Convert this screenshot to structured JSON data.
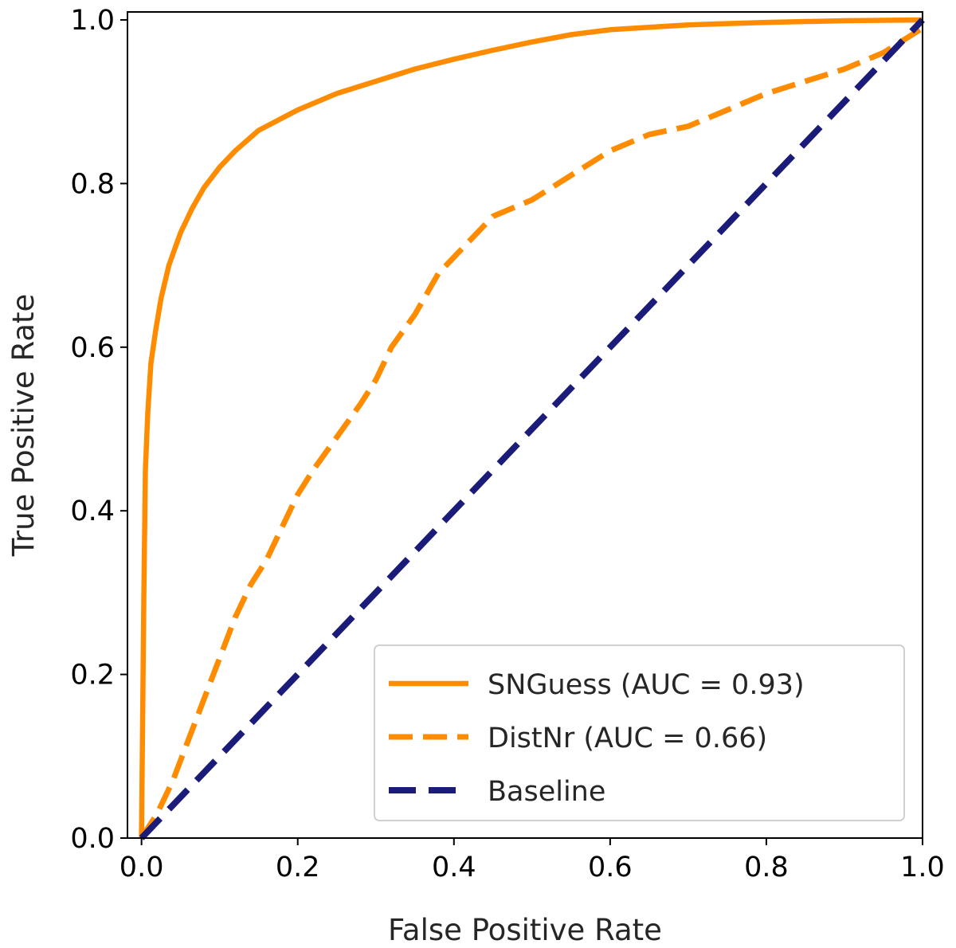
{
  "chart_data": {
    "type": "line",
    "title": "",
    "xlabel": "False Positive Rate",
    "ylabel": "True Positive Rate",
    "xlim": [
      0.0,
      1.0
    ],
    "ylim": [
      0.0,
      1.0
    ],
    "grid": false,
    "legend_position": "bottom-right",
    "x_ticks": [
      "0.0",
      "0.2",
      "0.4",
      "0.6",
      "0.8",
      "1.0"
    ],
    "y_ticks": [
      "0.0",
      "0.2",
      "0.4",
      "0.6",
      "0.8",
      "1.0"
    ],
    "series": [
      {
        "name": "SNGuess",
        "legend_label": "SNGuess (AUC = 0.93)",
        "auc": 0.93,
        "color": "#ff8c00",
        "style": "solid",
        "x": [
          0.0,
          0.003,
          0.005,
          0.008,
          0.012,
          0.018,
          0.025,
          0.035,
          0.05,
          0.065,
          0.08,
          0.1,
          0.12,
          0.15,
          0.2,
          0.25,
          0.3,
          0.35,
          0.4,
          0.45,
          0.5,
          0.55,
          0.6,
          0.7,
          0.8,
          0.9,
          1.0
        ],
        "y": [
          0.0,
          0.3,
          0.45,
          0.52,
          0.58,
          0.62,
          0.66,
          0.7,
          0.74,
          0.77,
          0.795,
          0.82,
          0.84,
          0.865,
          0.89,
          0.91,
          0.925,
          0.94,
          0.952,
          0.963,
          0.973,
          0.982,
          0.988,
          0.994,
          0.997,
          0.999,
          1.0
        ]
      },
      {
        "name": "DistNr",
        "legend_label": "DistNr (AUC = 0.66)",
        "auc": 0.66,
        "color": "#ff8c00",
        "style": "dashed",
        "x": [
          0.0,
          0.02,
          0.04,
          0.06,
          0.08,
          0.1,
          0.12,
          0.14,
          0.16,
          0.18,
          0.2,
          0.22,
          0.25,
          0.28,
          0.3,
          0.32,
          0.35,
          0.38,
          0.4,
          0.42,
          0.45,
          0.5,
          0.55,
          0.6,
          0.65,
          0.7,
          0.75,
          0.8,
          0.85,
          0.9,
          0.95,
          1.0
        ],
        "y": [
          0.0,
          0.03,
          0.07,
          0.12,
          0.17,
          0.22,
          0.27,
          0.31,
          0.34,
          0.38,
          0.42,
          0.45,
          0.49,
          0.53,
          0.56,
          0.6,
          0.64,
          0.69,
          0.71,
          0.73,
          0.76,
          0.78,
          0.81,
          0.84,
          0.86,
          0.87,
          0.89,
          0.91,
          0.925,
          0.94,
          0.96,
          0.99
        ]
      },
      {
        "name": "Baseline",
        "legend_label": "Baseline",
        "color": "#1b1b7a",
        "style": "dashed",
        "x": [
          0.0,
          1.0
        ],
        "y": [
          0.0,
          1.0
        ]
      }
    ]
  }
}
